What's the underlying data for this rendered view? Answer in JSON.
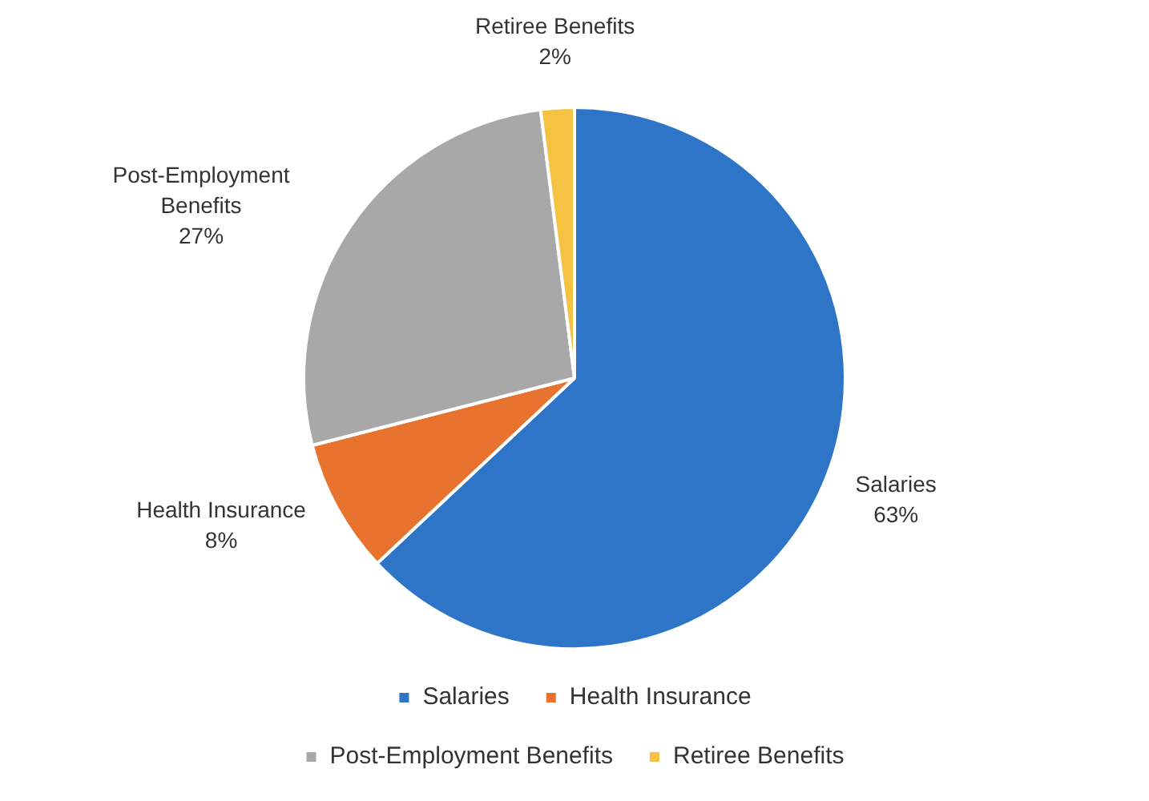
{
  "chart_data": {
    "type": "pie",
    "categories": [
      "Salaries",
      "Health Insurance",
      "Post-Employment Benefits",
      "Retiree Benefits"
    ],
    "values": [
      63,
      8,
      27,
      2
    ],
    "value_labels": [
      "63%",
      "8%",
      "27%",
      "2%"
    ],
    "colors": [
      "#2e75c8",
      "#e8732f",
      "#a8a8a8",
      "#f5c242"
    ],
    "legend": "bottom"
  }
}
